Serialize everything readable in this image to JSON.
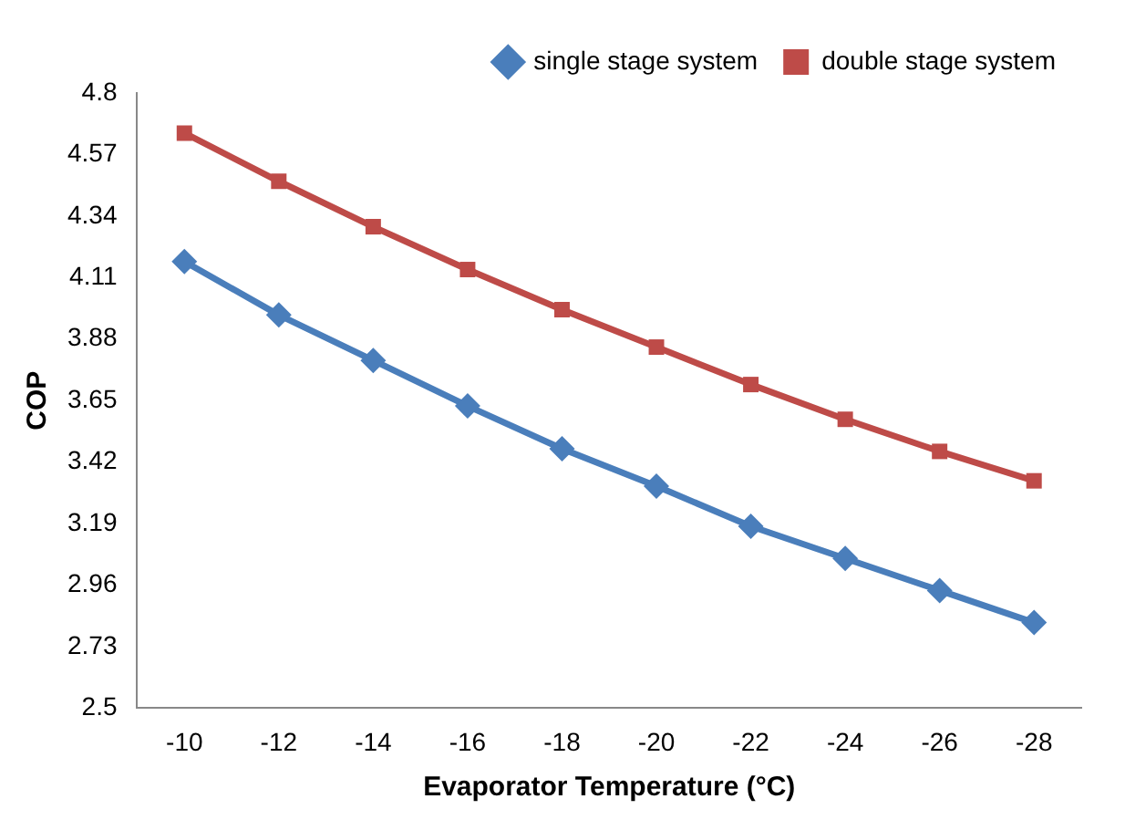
{
  "chart_data": {
    "type": "line",
    "xlabel": "Evaporator Temperature (°C)",
    "ylabel": "COP",
    "categories": [
      "-10",
      "-12",
      "-14",
      "-16",
      "-18",
      "-20",
      "-22",
      "-24",
      "-26",
      "-28"
    ],
    "series": [
      {
        "name": "single stage system",
        "color": "#4a7ebb",
        "marker": "diamond",
        "values": [
          4.17,
          3.97,
          3.8,
          3.63,
          3.47,
          3.33,
          3.18,
          3.06,
          2.94,
          2.82
        ]
      },
      {
        "name": "double stage system",
        "color": "#be4b48",
        "marker": "square",
        "values": [
          4.65,
          4.47,
          4.3,
          4.14,
          3.99,
          3.85,
          3.71,
          3.58,
          3.46,
          3.35
        ]
      }
    ],
    "ylim": [
      2.5,
      4.8
    ],
    "yticks": [
      2.5,
      2.73,
      2.96,
      3.19,
      3.42,
      3.65,
      3.88,
      4.11,
      4.34,
      4.57,
      4.8
    ],
    "grid": false,
    "legend": "top right",
    "line_style": "solid"
  }
}
